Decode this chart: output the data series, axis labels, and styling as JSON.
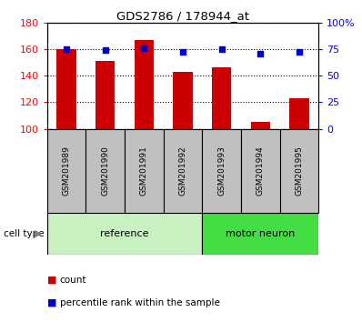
{
  "title": "GDS2786 / 178944_at",
  "samples": [
    "GSM201989",
    "GSM201990",
    "GSM201991",
    "GSM201992",
    "GSM201993",
    "GSM201994",
    "GSM201995"
  ],
  "counts": [
    160,
    151,
    167,
    143,
    146,
    105,
    123
  ],
  "percentiles": [
    75,
    74,
    76,
    72,
    75,
    71,
    72
  ],
  "reference_indices": [
    0,
    1,
    2,
    3
  ],
  "motor_neuron_indices": [
    4,
    5,
    6
  ],
  "ylim_left": [
    100,
    180
  ],
  "ylim_right": [
    0,
    100
  ],
  "yticks_left": [
    100,
    120,
    140,
    160,
    180
  ],
  "yticks_right": [
    0,
    25,
    50,
    75,
    100
  ],
  "yticklabels_right": [
    "0",
    "25",
    "50",
    "75",
    "100%"
  ],
  "yticklabels_left": [
    "100",
    "120",
    "140",
    "160",
    "180"
  ],
  "bar_color": "#cc0000",
  "dot_color": "#0000cc",
  "ref_bg_color": "#c8f0c0",
  "motor_bg_color": "#44dd44",
  "tick_label_bg": "#c0c0c0",
  "bar_width": 0.5,
  "baseline": 100,
  "fig_width": 3.98,
  "fig_height": 3.54,
  "dpi": 100
}
